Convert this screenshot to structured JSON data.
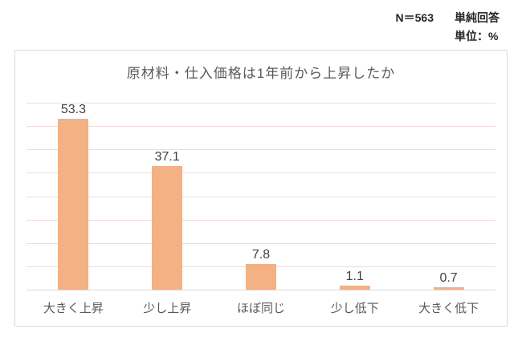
{
  "header": {
    "n_label": "N＝563",
    "answer_type": "単純回答",
    "unit": "単位：%"
  },
  "chart_data": {
    "type": "bar",
    "title": "原材料・仕入価格は1年前から上昇したか",
    "categories": [
      "大きく上昇",
      "少し上昇",
      "ほぼ同じ",
      "少し低下",
      "大きく低下"
    ],
    "values": [
      53.3,
      37.1,
      7.8,
      1.1,
      0.7
    ],
    "value_suffix": "",
    "unit": "%",
    "n": 563,
    "ylim": [
      0,
      56
    ],
    "grid_divisions": 8,
    "grid": true,
    "legend_position": "none",
    "bar_color": "#f4b183",
    "grid_color": "#eddcdb",
    "axis_color": "#d9d9d9",
    "border_color": "#d9d9d9",
    "title_color": "#595959",
    "label_color": "#404040"
  }
}
